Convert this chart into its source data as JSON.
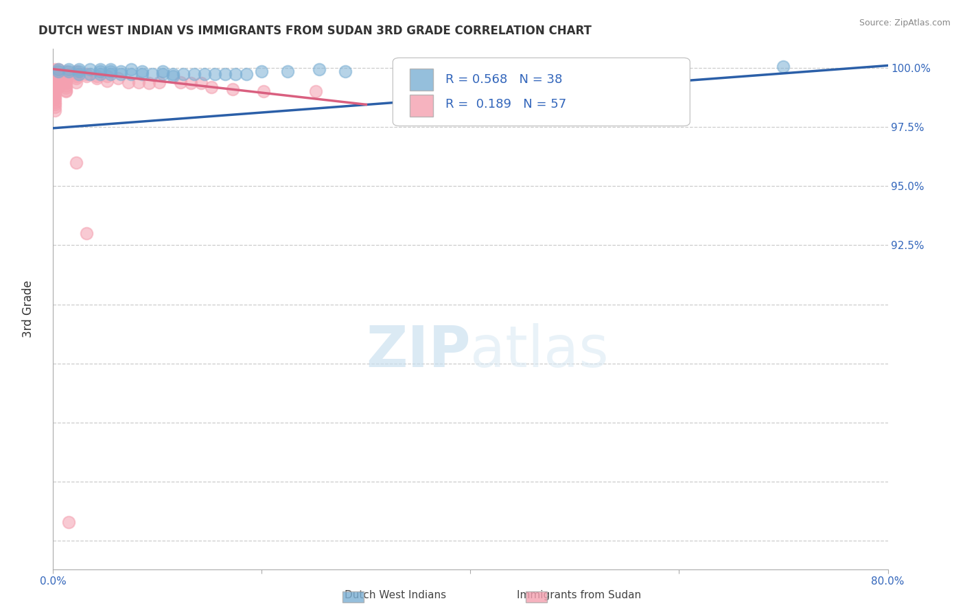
{
  "title": "DUTCH WEST INDIAN VS IMMIGRANTS FROM SUDAN 3RD GRADE CORRELATION CHART",
  "source": "Source: ZipAtlas.com",
  "ylabel": "3rd Grade",
  "xlim": [
    0.0,
    0.8
  ],
  "ylim": [
    0.788,
    1.008
  ],
  "xtick_positions": [
    0.0,
    0.2,
    0.4,
    0.6,
    0.8
  ],
  "xticklabels": [
    "0.0%",
    "",
    "",
    "",
    "80.0%"
  ],
  "ytick_positions": [
    0.8,
    0.825,
    0.85,
    0.875,
    0.9,
    0.925,
    0.95,
    0.975,
    1.0
  ],
  "ytick_labels_right": [
    "",
    "",
    "",
    "",
    "",
    "92.5%",
    "95.0%",
    "97.5%",
    "100.0%"
  ],
  "legend1_label": "Dutch West Indians",
  "legend2_label": "Immigrants from Sudan",
  "R1": 0.568,
  "N1": 38,
  "R2": 0.189,
  "N2": 57,
  "blue_color": "#7BAFD4",
  "pink_color": "#F4A0B0",
  "blue_line_color": "#2B5FA8",
  "pink_line_color": "#D95F7F",
  "blue_line_x": [
    0.0,
    0.8
  ],
  "blue_line_y": [
    0.9745,
    1.001
  ],
  "pink_line_x": [
    0.0,
    0.3
  ],
  "pink_line_y": [
    0.9995,
    0.9845
  ],
  "watermark_zip": "ZIP",
  "watermark_atlas": "atlas",
  "background_color": "#FFFFFF",
  "grid_color": "#CCCCCC",
  "blue_scatter_x": [
    0.005,
    0.005,
    0.015,
    0.015,
    0.025,
    0.025,
    0.025,
    0.035,
    0.035,
    0.045,
    0.045,
    0.045,
    0.055,
    0.055,
    0.055,
    0.065,
    0.065,
    0.075,
    0.075,
    0.085,
    0.085,
    0.095,
    0.105,
    0.105,
    0.115,
    0.115,
    0.125,
    0.135,
    0.145,
    0.155,
    0.165,
    0.175,
    0.185,
    0.2,
    0.225,
    0.255,
    0.28,
    0.7
  ],
  "blue_scatter_y": [
    0.9995,
    0.9985,
    0.9995,
    0.9985,
    0.9995,
    0.9985,
    0.9975,
    0.9995,
    0.9975,
    0.9995,
    0.9985,
    0.9975,
    0.9995,
    0.9985,
    0.9975,
    0.9985,
    0.9975,
    0.9995,
    0.9975,
    0.9985,
    0.9975,
    0.9975,
    0.9985,
    0.9975,
    0.9975,
    0.9965,
    0.9975,
    0.9975,
    0.9975,
    0.9975,
    0.9975,
    0.9975,
    0.9975,
    0.9985,
    0.9985,
    0.9995,
    0.9985,
    1.0005
  ],
  "pink_scatter_x": [
    0.002,
    0.002,
    0.002,
    0.002,
    0.002,
    0.002,
    0.002,
    0.002,
    0.002,
    0.002,
    0.002,
    0.002,
    0.002,
    0.002,
    0.002,
    0.002,
    0.002,
    0.002,
    0.005,
    0.005,
    0.005,
    0.012,
    0.012,
    0.012,
    0.012,
    0.012,
    0.012,
    0.012,
    0.012,
    0.012,
    0.012,
    0.022,
    0.022,
    0.022,
    0.022,
    0.022,
    0.032,
    0.032,
    0.042,
    0.042,
    0.052,
    0.052,
    0.062,
    0.072,
    0.082,
    0.092,
    0.102,
    0.122,
    0.132,
    0.142,
    0.152,
    0.172,
    0.202,
    0.252,
    0.022,
    0.032,
    0.015
  ],
  "pink_scatter_y": [
    0.9995,
    0.9985,
    0.9975,
    0.9965,
    0.9955,
    0.9945,
    0.9935,
    0.9925,
    0.9915,
    0.9905,
    0.9895,
    0.9885,
    0.9875,
    0.9865,
    0.9855,
    0.9845,
    0.9835,
    0.982,
    0.9995,
    0.9955,
    0.992,
    0.9985,
    0.9975,
    0.9965,
    0.9955,
    0.9945,
    0.9935,
    0.9925,
    0.9915,
    0.9905,
    0.99,
    0.9985,
    0.9975,
    0.9965,
    0.9955,
    0.994,
    0.9975,
    0.9965,
    0.9965,
    0.9955,
    0.9965,
    0.9945,
    0.9955,
    0.994,
    0.994,
    0.9935,
    0.994,
    0.994,
    0.9935,
    0.9935,
    0.992,
    0.991,
    0.99,
    0.99,
    0.96,
    0.93,
    0.808
  ]
}
